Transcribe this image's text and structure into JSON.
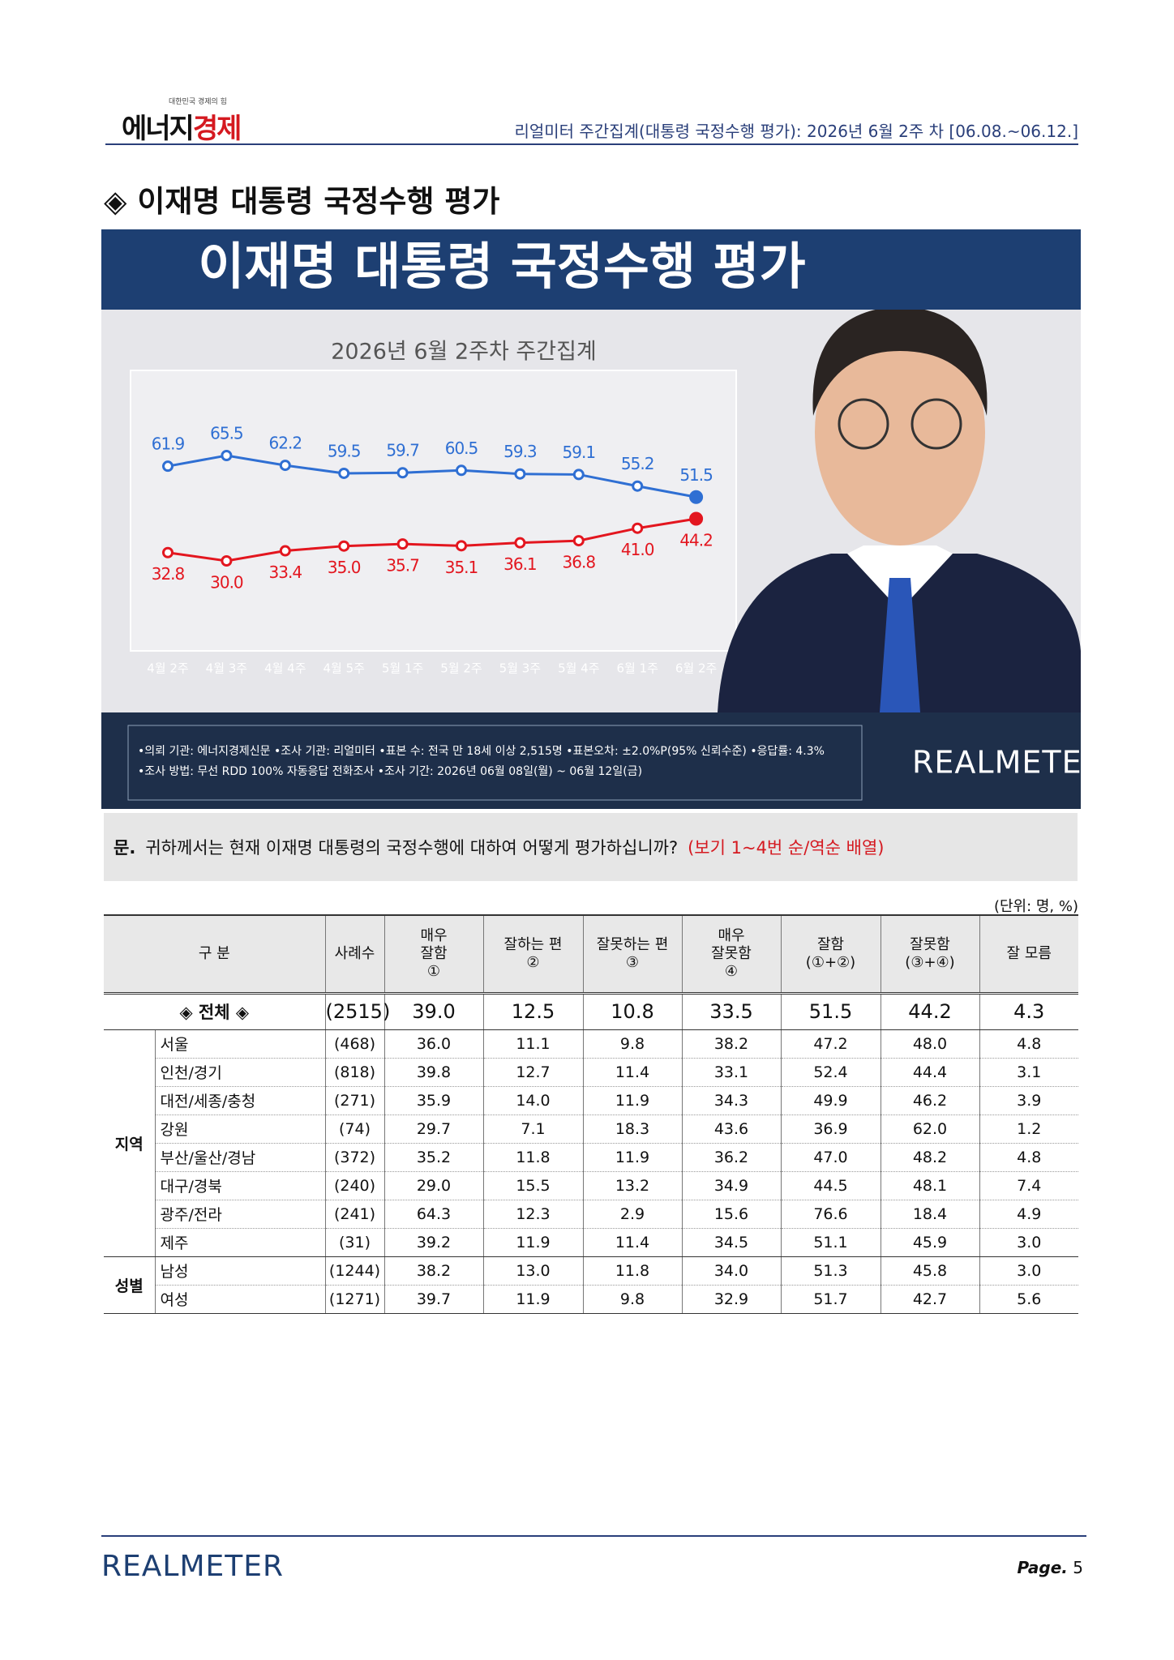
{
  "header": {
    "logo_a": "에너지",
    "logo_b": "경제",
    "logo_tagline": "대한민국 경제의 힘",
    "title": "리얼미터 주간집계(대통령 국정수행 평가): 2026년 6월 2주 차 [06.08.~06.12.]"
  },
  "section_title": "◈ 이재명 대통령 국정수행 평가",
  "chart_data": {
    "type": "line",
    "title": "이재명 대통령 국정수행 평가",
    "subtitle": "2026년 6월 2주차 주간집계",
    "categories": [
      "4월 2주",
      "4월 3주",
      "4월 4주",
      "4월 5주",
      "5월 1주",
      "5월 2주",
      "5월 3주",
      "5월 4주",
      "6월 1주",
      "6월 2주"
    ],
    "series": [
      {
        "color": "#2f6fd3",
        "values": [
          61.9,
          65.5,
          62.2,
          59.5,
          59.7,
          60.5,
          59.3,
          59.1,
          55.2,
          51.5
        ],
        "value_labels": [
          "61.9",
          "65.5",
          "62.2",
          "59.5",
          "59.7",
          "60.5",
          "59.3",
          "59.1",
          "55.2",
          "51.5"
        ]
      },
      {
        "color": "#e3161f",
        "values": [
          32.8,
          30.0,
          33.4,
          35.0,
          35.7,
          35.1,
          36.1,
          36.8,
          41.0,
          44.2
        ],
        "value_labels": [
          "32.8",
          "30.0",
          "33.4",
          "35.0",
          "35.7",
          "35.1",
          "36.1",
          "36.8",
          "41.0",
          "44.2"
        ]
      }
    ],
    "notes": [
      "•의뢰 기관: 에너지경제신문 •조사 기관: 리얼미터 •표본 수: 전국 만 18세 이상 2,515명 •표본오차: ±2.0%P(95% 신뢰수준) •응답률: 4.3%",
      "•조사 방법: 무선 RDD 100% 자동응답 전화조사 •조사 기간: 2026년 06월 08일(월) ~ 06월 12일(금)"
    ],
    "brand": "REALMETER"
  },
  "question": {
    "label": "문.",
    "text": "귀하께서는 현재 이재명 대통령의 국정수행에 대하여 어떻게 평가하십니까?",
    "note": "(보기 1~4번 순/역순 배열)"
  },
  "table": {
    "unit": "(단위: 명, %)",
    "columns": [
      [
        "구  분"
      ],
      [
        "사례수"
      ],
      [
        "매우",
        "잘함",
        "①"
      ],
      [
        "잘하는 편",
        "②"
      ],
      [
        "잘못하는 편",
        "③"
      ],
      [
        "매우",
        "잘못함",
        "④"
      ],
      [
        "잘함",
        "(①+②)"
      ],
      [
        "잘못함",
        "(③+④)"
      ],
      [
        "잘 모름"
      ]
    ],
    "total": {
      "label": "◈ 전체 ◈",
      "cells": [
        "(2515)",
        "39.0",
        "12.5",
        "10.8",
        "33.5",
        "51.5",
        "44.2",
        "4.3"
      ]
    },
    "groups": [
      {
        "name": "지역",
        "rows": [
          {
            "label": "서울",
            "cells": [
              "(468)",
              "36.0",
              "11.1",
              "9.8",
              "38.2",
              "47.2",
              "48.0",
              "4.8"
            ]
          },
          {
            "label": "인천/경기",
            "cells": [
              "(818)",
              "39.8",
              "12.7",
              "11.4",
              "33.1",
              "52.4",
              "44.4",
              "3.1"
            ]
          },
          {
            "label": "대전/세종/충청",
            "cells": [
              "(271)",
              "35.9",
              "14.0",
              "11.9",
              "34.3",
              "49.9",
              "46.2",
              "3.9"
            ]
          },
          {
            "label": "강원",
            "cells": [
              "(74)",
              "29.7",
              "7.1",
              "18.3",
              "43.6",
              "36.9",
              "62.0",
              "1.2"
            ]
          },
          {
            "label": "부산/울산/경남",
            "cells": [
              "(372)",
              "35.2",
              "11.8",
              "11.9",
              "36.2",
              "47.0",
              "48.2",
              "4.8"
            ]
          },
          {
            "label": "대구/경북",
            "cells": [
              "(240)",
              "29.0",
              "15.5",
              "13.2",
              "34.9",
              "44.5",
              "48.1",
              "7.4"
            ]
          },
          {
            "label": "광주/전라",
            "cells": [
              "(241)",
              "64.3",
              "12.3",
              "2.9",
              "15.6",
              "76.6",
              "18.4",
              "4.9"
            ]
          },
          {
            "label": "제주",
            "cells": [
              "(31)",
              "39.2",
              "11.9",
              "11.4",
              "34.5",
              "51.1",
              "45.9",
              "3.0"
            ]
          }
        ]
      },
      {
        "name": "성별",
        "rows": [
          {
            "label": "남성",
            "cells": [
              "(1244)",
              "38.2",
              "13.0",
              "11.8",
              "34.0",
              "51.3",
              "45.8",
              "3.0"
            ]
          },
          {
            "label": "여성",
            "cells": [
              "(1271)",
              "39.7",
              "11.9",
              "9.8",
              "32.9",
              "51.7",
              "42.7",
              "5.6"
            ]
          }
        ]
      }
    ]
  },
  "footer": {
    "brand": "REALMETER",
    "page_label": "Page.",
    "page_number": "5"
  }
}
